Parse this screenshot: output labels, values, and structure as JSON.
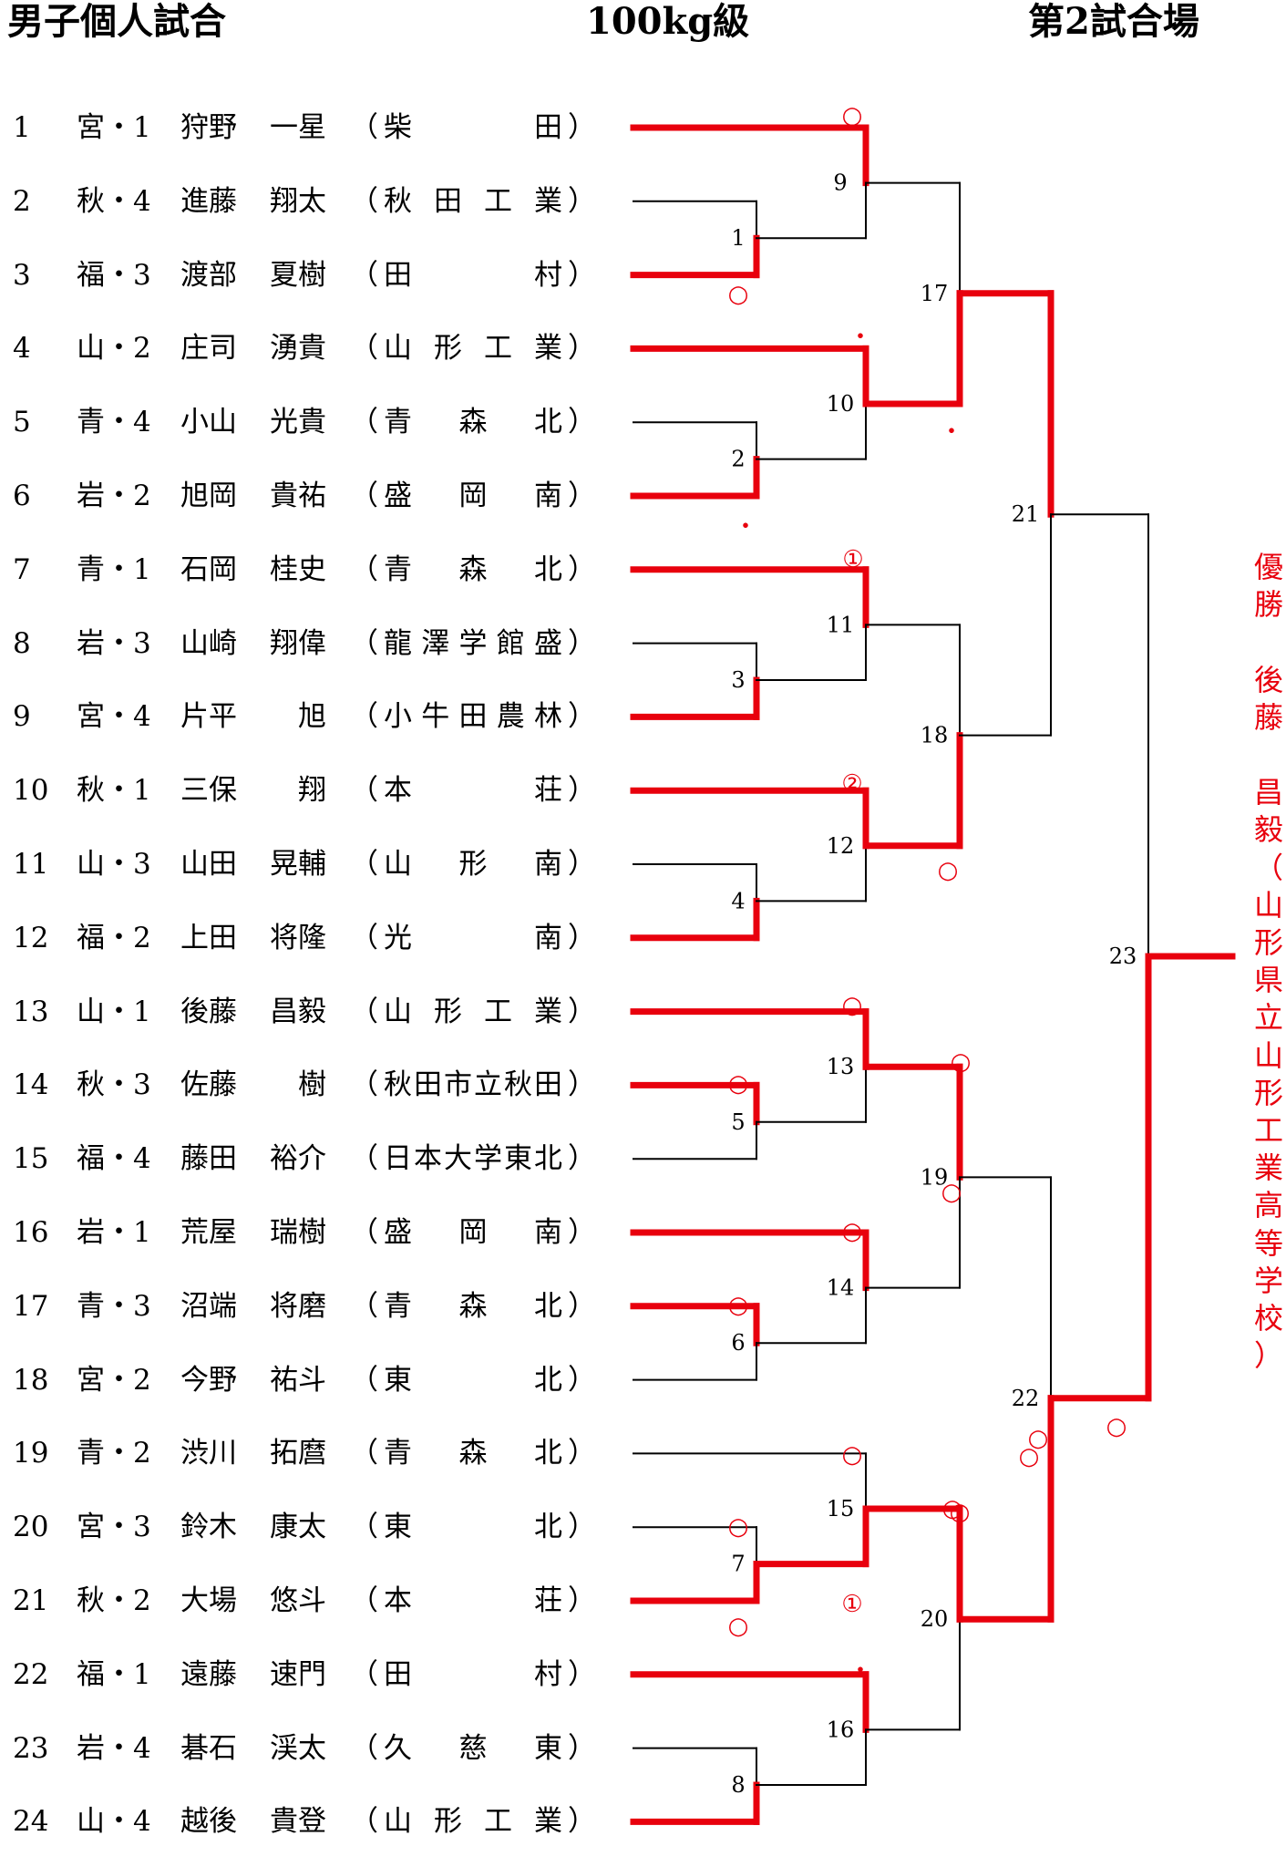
{
  "header": {
    "title": "男子個人試合",
    "weight_class": "100kg級",
    "venue": "第2試合場"
  },
  "competitors": [
    {
      "num": "1",
      "pref": "宮・1",
      "name": "狩野 一星",
      "school": "柴田"
    },
    {
      "num": "2",
      "pref": "秋・4",
      "name": "進藤 翔太",
      "school": "秋田工業"
    },
    {
      "num": "3",
      "pref": "福・3",
      "name": "渡部 夏樹",
      "school": "田村"
    },
    {
      "num": "4",
      "pref": "山・2",
      "name": "庄司 湧貴",
      "school": "山形工業"
    },
    {
      "num": "5",
      "pref": "青・4",
      "name": "小山 光貴",
      "school": "青森北"
    },
    {
      "num": "6",
      "pref": "岩・2",
      "name": "旭岡 貴祐",
      "school": "盛岡南"
    },
    {
      "num": "7",
      "pref": "青・1",
      "name": "石岡 桂史",
      "school": "青森北"
    },
    {
      "num": "8",
      "pref": "岩・3",
      "name": "山崎 翔偉",
      "school": "龍澤学館 盛"
    },
    {
      "num": "9",
      "pref": "宮・4",
      "name": "片平 旭",
      "school": "小牛田農林"
    },
    {
      "num": "10",
      "pref": "秋・1",
      "name": "三保 翔",
      "school": "本荘"
    },
    {
      "num": "11",
      "pref": "山・3",
      "name": "山田 晃輔",
      "school": "山形南"
    },
    {
      "num": "12",
      "pref": "福・2",
      "name": "上田 将隆",
      "school": "光南"
    },
    {
      "num": "13",
      "pref": "山・1",
      "name": "後藤 昌毅",
      "school": "山形工業"
    },
    {
      "num": "14",
      "pref": "秋・3",
      "name": "佐藤 樹",
      "school": "秋田市立秋田"
    },
    {
      "num": "15",
      "pref": "福・4",
      "name": "藤田 裕介",
      "school": "日本大学東北"
    },
    {
      "num": "16",
      "pref": "岩・1",
      "name": "荒屋 瑞樹",
      "school": "盛岡南"
    },
    {
      "num": "17",
      "pref": "青・3",
      "name": "沼端 将磨",
      "school": "青森北"
    },
    {
      "num": "18",
      "pref": "宮・2",
      "name": "今野 祐斗",
      "school": "東北"
    },
    {
      "num": "19",
      "pref": "青・2",
      "name": "渋川 拓麿",
      "school": "青森北"
    },
    {
      "num": "20",
      "pref": "宮・3",
      "name": "鈴木 康太",
      "school": "東北"
    },
    {
      "num": "21",
      "pref": "秋・2",
      "name": "大場 悠斗",
      "school": "本荘"
    },
    {
      "num": "22",
      "pref": "福・1",
      "name": "遠藤 速門",
      "school": "田村"
    },
    {
      "num": "23",
      "pref": "岩・4",
      "name": "碁石 渓太",
      "school": "久慈東"
    },
    {
      "num": "24",
      "pref": "山・4",
      "name": "越後 貴登",
      "school": "山形工業"
    }
  ],
  "winner": {
    "text": "優勝 後藤 昌毅（山形県立山形工業高等学校）"
  },
  "match_numbers": [
    "1",
    "2",
    "3",
    "4",
    "5",
    "6",
    "7",
    "8",
    "9",
    "10",
    "11",
    "12",
    "13",
    "14",
    "15",
    "16",
    "17",
    "18",
    "19",
    "20",
    "21",
    "22",
    "23"
  ],
  "result_marks": [
    "○",
    "○",
    "・",
    "・",
    "①",
    "・",
    "②",
    "○",
    "○",
    "○",
    "○",
    "○",
    "○",
    "○",
    "○",
    "○",
    "①",
    "○",
    "○",
    "・",
    "○",
    "○",
    "○",
    "○"
  ],
  "colors": {
    "winner_line": "#e8000d",
    "normal_line": "#000000",
    "winner_text": "#e8000d"
  }
}
